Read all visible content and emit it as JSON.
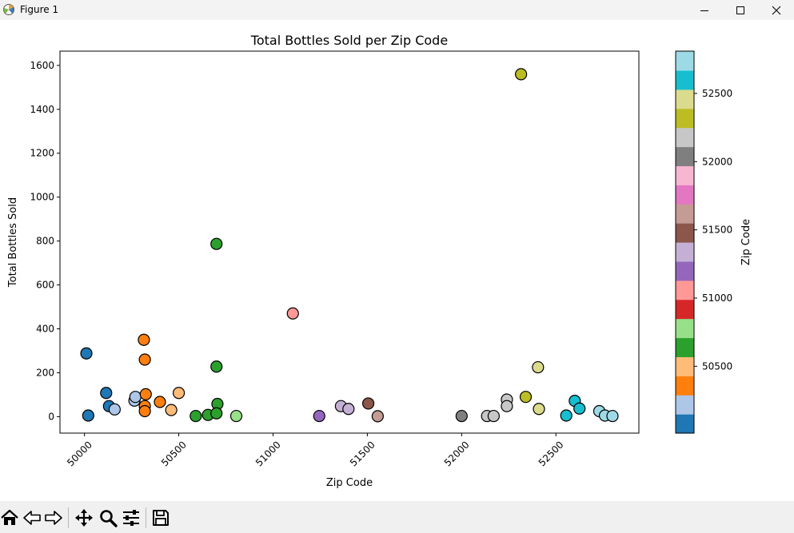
{
  "window": {
    "title": "Figure 1"
  },
  "toolbar": {
    "buttons": [
      "home-icon",
      "back-arrow-icon",
      "forward-arrow-icon",
      "pan-icon",
      "zoom-icon",
      "configure-subplots-icon",
      "save-icon"
    ]
  },
  "chart_data": {
    "type": "scatter",
    "title": "Total Bottles Sold per Zip Code",
    "xlabel": "Zip Code",
    "ylabel": "Total Bottles Sold",
    "xlim": [
      49870,
      52940
    ],
    "ylim": [
      -75,
      1665
    ],
    "x_ticks": [
      50000,
      50500,
      51000,
      51500,
      52000,
      52500
    ],
    "y_ticks": [
      0,
      200,
      400,
      600,
      800,
      1000,
      1200,
      1400,
      1600
    ],
    "grid": false,
    "colormap": "tab20",
    "colorbar": {
      "label": "Zip Code",
      "range": [
        50010,
        52810
      ],
      "ticks": [
        50500,
        51000,
        51500,
        52000,
        52500
      ],
      "colors": [
        "#1f77b4",
        "#aec7e8",
        "#ff7f0e",
        "#ffbb78",
        "#2ca02c",
        "#98df8a",
        "#d62728",
        "#ff9896",
        "#9467bd",
        "#c5b0d5",
        "#8c564b",
        "#c49c94",
        "#e377c2",
        "#f7b6d2",
        "#7f7f7f",
        "#c7c7c7",
        "#bcbd22",
        "#dbdb8d",
        "#17becf",
        "#9edae5"
      ]
    },
    "points": [
      {
        "x": 50010,
        "y": 288
      },
      {
        "x": 50020,
        "y": 5
      },
      {
        "x": 50115,
        "y": 108
      },
      {
        "x": 50130,
        "y": 48
      },
      {
        "x": 50160,
        "y": 33
      },
      {
        "x": 50265,
        "y": 73
      },
      {
        "x": 50270,
        "y": 90
      },
      {
        "x": 50315,
        "y": 350
      },
      {
        "x": 50320,
        "y": 260
      },
      {
        "x": 50320,
        "y": 48
      },
      {
        "x": 50320,
        "y": 25
      },
      {
        "x": 50325,
        "y": 102
      },
      {
        "x": 50400,
        "y": 67
      },
      {
        "x": 50460,
        "y": 30
      },
      {
        "x": 50500,
        "y": 108
      },
      {
        "x": 50590,
        "y": 3
      },
      {
        "x": 50655,
        "y": 8
      },
      {
        "x": 50700,
        "y": 787
      },
      {
        "x": 50700,
        "y": 228
      },
      {
        "x": 50705,
        "y": 58
      },
      {
        "x": 50700,
        "y": 15
      },
      {
        "x": 50805,
        "y": 3
      },
      {
        "x": 51105,
        "y": 470
      },
      {
        "x": 51245,
        "y": 3
      },
      {
        "x": 51360,
        "y": 48
      },
      {
        "x": 51400,
        "y": 35
      },
      {
        "x": 51505,
        "y": 60
      },
      {
        "x": 51555,
        "y": 2
      },
      {
        "x": 52000,
        "y": 3
      },
      {
        "x": 52135,
        "y": 3
      },
      {
        "x": 52170,
        "y": 3
      },
      {
        "x": 52240,
        "y": 78
      },
      {
        "x": 52240,
        "y": 48
      },
      {
        "x": 52315,
        "y": 1560
      },
      {
        "x": 52340,
        "y": 90
      },
      {
        "x": 52405,
        "y": 225
      },
      {
        "x": 52410,
        "y": 35
      },
      {
        "x": 52555,
        "y": 5
      },
      {
        "x": 52600,
        "y": 72
      },
      {
        "x": 52625,
        "y": 37
      },
      {
        "x": 52730,
        "y": 25
      },
      {
        "x": 52760,
        "y": 5
      },
      {
        "x": 52800,
        "y": 3
      }
    ]
  }
}
